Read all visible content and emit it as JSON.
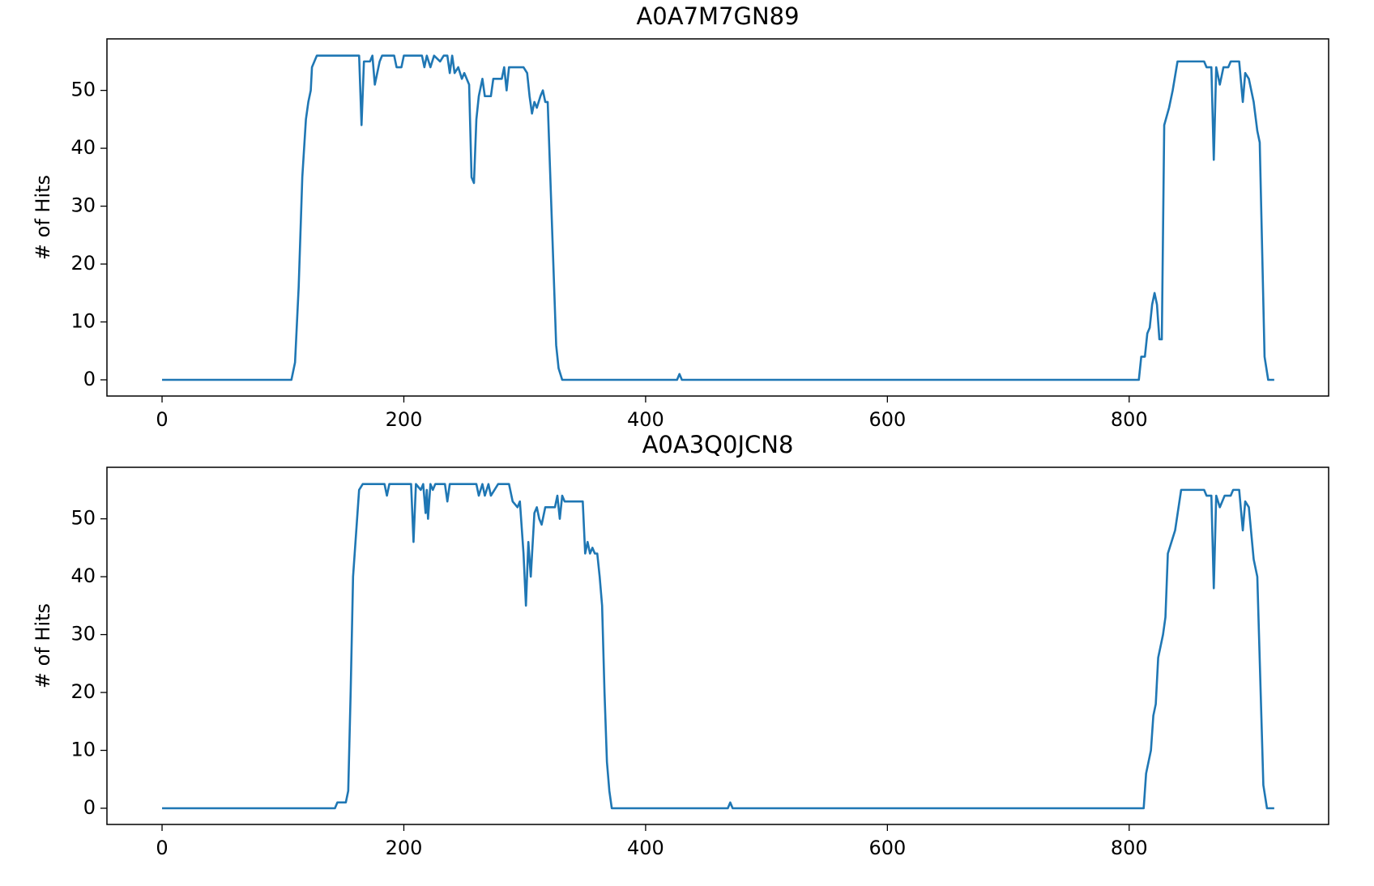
{
  "chart_data": [
    {
      "type": "line",
      "title": "A0A7M7GN89",
      "ylabel": "# of Hits",
      "color": "#1f77b4",
      "xlim": [
        -45.6,
        965
      ],
      "ylim": [
        -2.8,
        58.9
      ],
      "xticks": [
        0,
        200,
        400,
        600,
        800
      ],
      "yticks": [
        0,
        10,
        20,
        30,
        40,
        50
      ],
      "x": [
        0,
        107,
        110,
        113,
        116,
        119,
        121,
        123,
        124,
        126,
        128,
        163,
        165,
        167,
        172,
        174,
        176,
        178,
        180,
        182,
        192,
        194,
        198,
        200,
        215,
        217,
        219,
        222,
        225,
        230,
        233,
        236,
        238,
        240,
        242,
        245,
        248,
        250,
        254,
        256,
        258,
        260,
        262,
        265,
        267,
        272,
        274,
        281,
        283,
        285,
        287,
        299,
        302,
        304,
        306,
        308,
        310,
        313,
        315,
        317,
        319,
        323,
        326,
        328,
        331,
        426,
        428,
        430,
        808,
        810,
        813,
        815,
        817,
        819,
        821,
        823,
        825,
        827,
        829,
        833,
        836,
        840,
        862,
        864,
        868,
        870,
        872,
        875,
        878,
        882,
        884,
        891,
        894,
        896,
        899,
        903,
        906,
        908,
        912,
        915,
        920
      ],
      "values": [
        0,
        0,
        3,
        16,
        35,
        45,
        48,
        50,
        54,
        55,
        56,
        56,
        44,
        55,
        55,
        56,
        51,
        53,
        55,
        56,
        56,
        54,
        54,
        56,
        56,
        54,
        56,
        54,
        56,
        55,
        56,
        56,
        53,
        56,
        53,
        54,
        52,
        53,
        51,
        35,
        34,
        45,
        49,
        52,
        49,
        49,
        52,
        52,
        54,
        50,
        54,
        54,
        53,
        49,
        46,
        48,
        47,
        49,
        50,
        48,
        48,
        24,
        6,
        2,
        0,
        0,
        1,
        0,
        0,
        4,
        4,
        8,
        9,
        13,
        15,
        13,
        7,
        7,
        44,
        47,
        50,
        55,
        55,
        54,
        54,
        38,
        54,
        51,
        54,
        54,
        55,
        55,
        48,
        53,
        52,
        48,
        43,
        41,
        4,
        0,
        0
      ]
    },
    {
      "type": "line",
      "title": "A0A3Q0JCN8",
      "ylabel": "# of Hits",
      "color": "#1f77b4",
      "xlim": [
        -45.6,
        965
      ],
      "ylim": [
        -2.8,
        58.9
      ],
      "xticks": [
        0,
        200,
        400,
        600,
        800
      ],
      "yticks": [
        0,
        10,
        20,
        30,
        40,
        50
      ],
      "x": [
        0,
        143,
        145,
        152,
        154,
        156,
        158,
        161,
        163,
        166,
        184,
        186,
        188,
        206,
        208,
        210,
        214,
        216,
        218,
        219,
        220,
        222,
        224,
        226,
        234,
        236,
        238,
        260,
        262,
        265,
        267,
        270,
        272,
        278,
        287,
        290,
        294,
        296,
        299,
        301,
        303,
        305,
        308,
        310,
        312,
        314,
        317,
        325,
        327,
        329,
        331,
        333,
        348,
        350,
        352,
        354,
        356,
        358,
        360,
        362,
        364,
        366,
        368,
        370,
        372,
        468,
        470,
        472,
        812,
        814,
        818,
        820,
        822,
        824,
        828,
        830,
        832,
        835,
        838,
        843,
        862,
        864,
        868,
        870,
        872,
        875,
        879,
        884,
        886,
        891,
        894,
        896,
        899,
        903,
        906,
        911,
        914,
        920
      ],
      "values": [
        0,
        0,
        1,
        1,
        3,
        20,
        40,
        49,
        55,
        56,
        56,
        54,
        56,
        56,
        46,
        56,
        55,
        56,
        51,
        55,
        50,
        56,
        55,
        56,
        56,
        53,
        56,
        56,
        54,
        56,
        54,
        56,
        54,
        56,
        56,
        53,
        52,
        53,
        44,
        35,
        46,
        40,
        51,
        52,
        50,
        49,
        52,
        52,
        54,
        50,
        54,
        53,
        53,
        44,
        46,
        44,
        45,
        44,
        44,
        40,
        35,
        20,
        8,
        3,
        0,
        0,
        1,
        0,
        0,
        6,
        10,
        16,
        18,
        26,
        30,
        33,
        44,
        46,
        48,
        55,
        55,
        54,
        54,
        38,
        54,
        52,
        54,
        54,
        55,
        55,
        48,
        53,
        52,
        43,
        40,
        4,
        0,
        0
      ]
    }
  ]
}
